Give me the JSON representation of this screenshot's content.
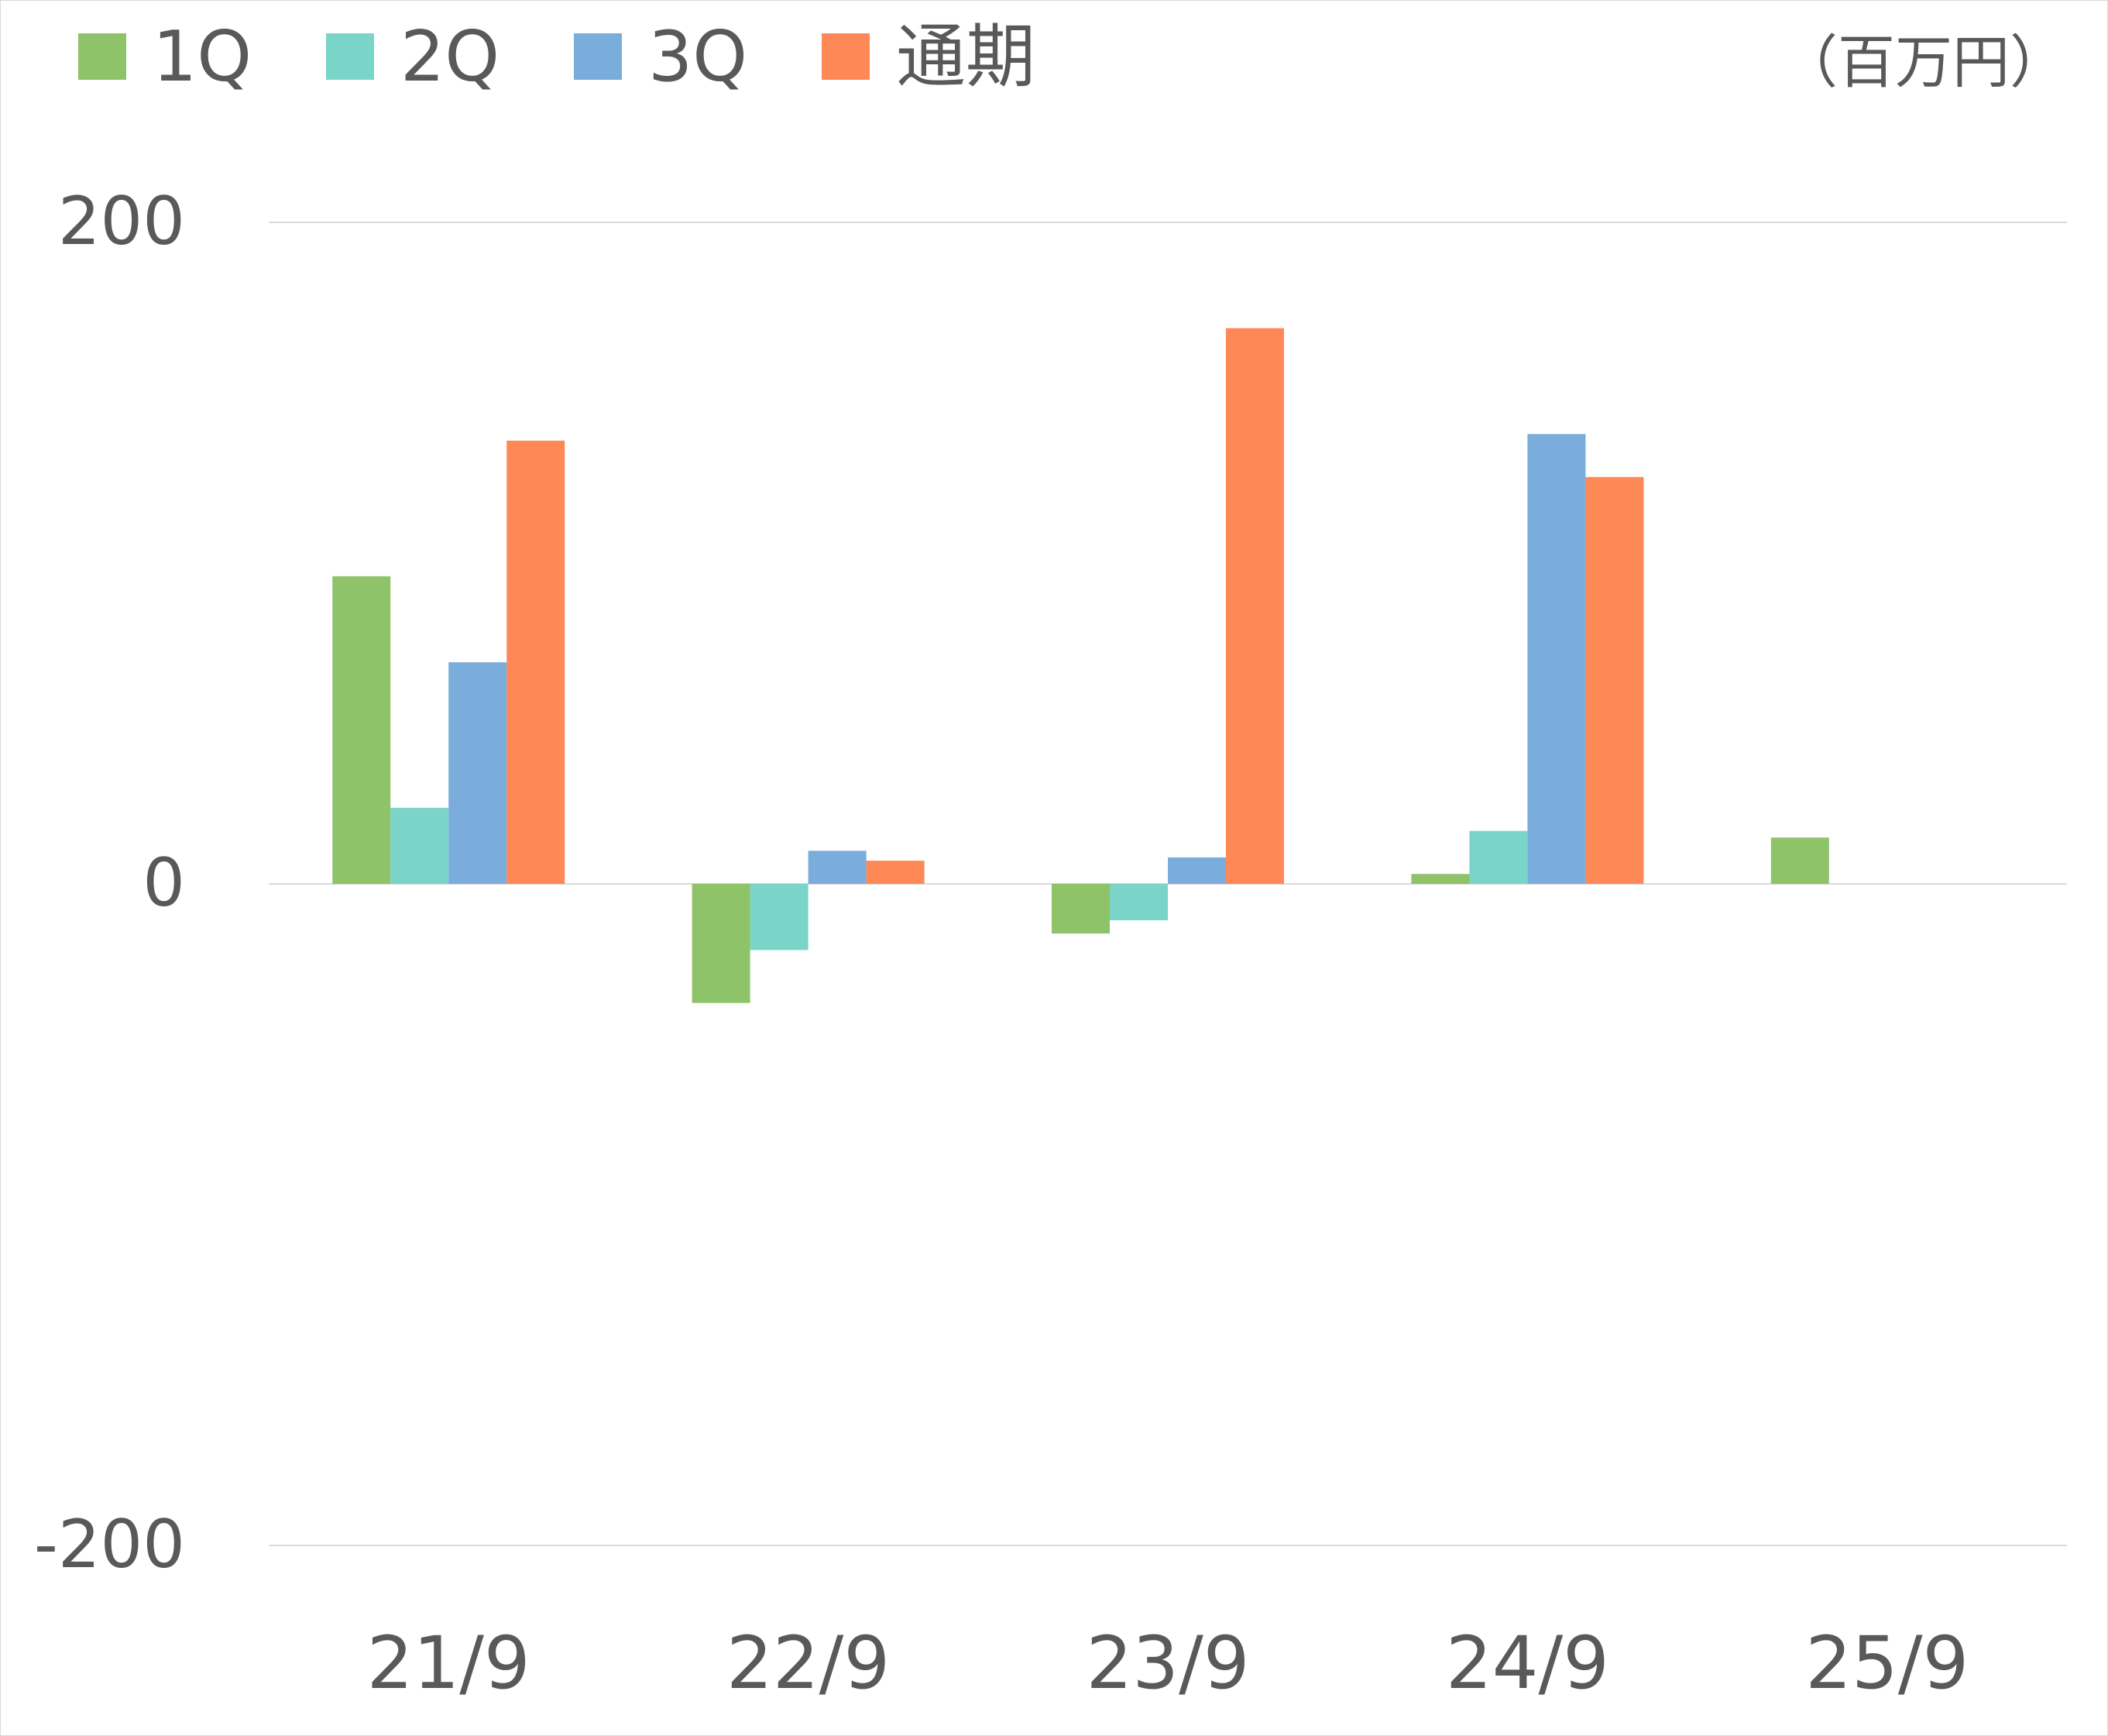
{
  "chart_data": {
    "type": "bar",
    "unit_label": "（百万円）",
    "categories": [
      "21/9",
      "22/9",
      "23/9",
      "24/9",
      "25/9"
    ],
    "series": [
      {
        "name": "1Q",
        "color": "#8fc36a",
        "values": [
          93,
          -36,
          -15,
          3,
          14
        ]
      },
      {
        "name": "2Q",
        "color": "#7ad4c8",
        "values": [
          23,
          -20,
          -11,
          16,
          null
        ]
      },
      {
        "name": "3Q",
        "color": "#7aaddc",
        "values": [
          67,
          10,
          8,
          136,
          null
        ]
      },
      {
        "name": "通期",
        "color": "#fe8856",
        "values": [
          134,
          7,
          168,
          123,
          null
        ]
      }
    ],
    "ylim": [
      -200,
      200
    ],
    "yticks": [
      "200",
      "0",
      "-200"
    ],
    "grid": true,
    "legend_position": "top-left"
  }
}
